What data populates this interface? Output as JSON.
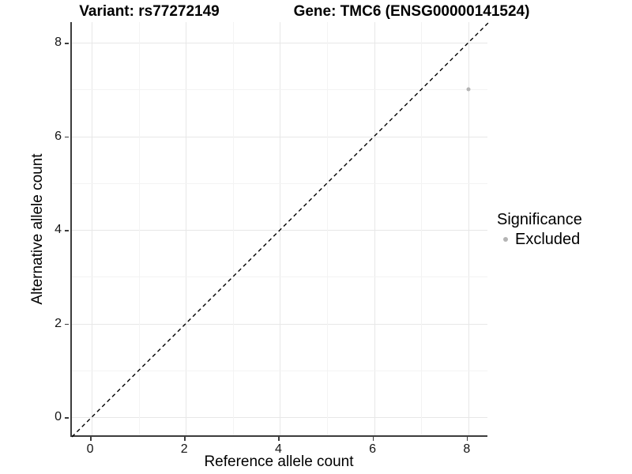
{
  "titles": {
    "left": "Variant: rs77272149",
    "right": "Gene: TMC6 (ENSG00000141524)"
  },
  "chart_data": {
    "type": "scatter",
    "title": "Variant: rs77272149   Gene: TMC6 (ENSG00000141524)",
    "xlabel": "Reference allele count",
    "ylabel": "Alternative allele count",
    "xlim": [
      -0.42,
      8.44
    ],
    "ylim": [
      -0.42,
      8.44
    ],
    "x_major_ticks": [
      0,
      2,
      4,
      6,
      8
    ],
    "y_major_ticks": [
      0,
      2,
      4,
      6,
      8
    ],
    "x_minor_ticks": [
      1,
      3,
      5,
      7
    ],
    "y_minor_ticks": [
      1,
      3,
      5,
      7
    ],
    "grid": "major+minor on white background",
    "points": [
      {
        "x": 8,
        "y": 7,
        "series": "Excluded"
      }
    ],
    "reference_line": {
      "kind": "identity y=x",
      "slope": 1,
      "intercept": 0,
      "style": "dashed",
      "color": "#000000"
    },
    "legend": {
      "title": "Significance",
      "position": "right",
      "entries": [
        {
          "label": "Excluded",
          "color": "#b4b4b4"
        }
      ]
    }
  },
  "colors": {
    "point_excluded": "#b4b4b4",
    "axis_line": "#3c3c3c",
    "grid_major": "#e7e7e7",
    "grid_minor": "#f3f3f3",
    "dashed_line": "#000000",
    "background": "#ffffff"
  }
}
